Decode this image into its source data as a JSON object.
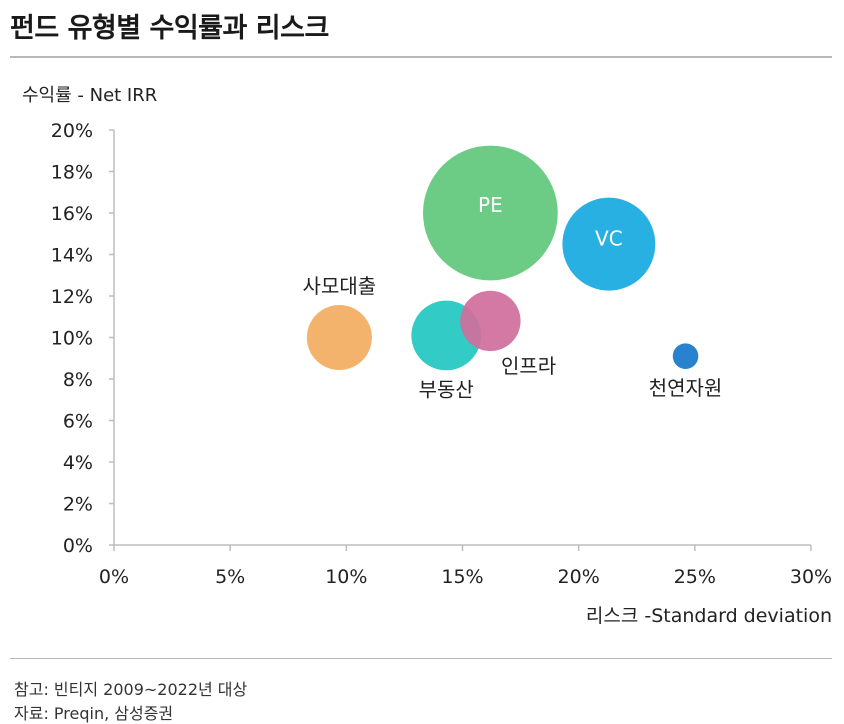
{
  "title": "펀드 유형별 수익률과 리스크",
  "notes": {
    "note1": "참고: 빈티지 2009~2022년 대상",
    "note2": "자료: Preqin, 삼성증권"
  },
  "chart_data": {
    "type": "scatter",
    "xlabel": "리스크 -Standard deviation",
    "ylabel": "수익률 - Net IRR",
    "xlim": [
      0,
      30
    ],
    "ylim": [
      0,
      20
    ],
    "xticks": [
      "0%",
      "5%",
      "10%",
      "15%",
      "20%",
      "25%",
      "30%"
    ],
    "yticks": [
      "0%",
      "2%",
      "4%",
      "6%",
      "8%",
      "10%",
      "12%",
      "14%",
      "16%",
      "18%",
      "20%"
    ],
    "grid": false,
    "points": [
      {
        "name": "사모대출",
        "x": 9.7,
        "y": 10.0,
        "size": 1.4,
        "color": "#f3ac5f",
        "label_pos": "above"
      },
      {
        "name": "부동산",
        "x": 14.3,
        "y": 10.1,
        "size": 1.5,
        "color": "#22c7c0",
        "label_pos": "below"
      },
      {
        "name": "인프라",
        "x": 16.2,
        "y": 10.8,
        "size": 1.3,
        "color": "#d06e9c",
        "label_pos": "below-right"
      },
      {
        "name": "PE",
        "x": 16.2,
        "y": 16.0,
        "size": 2.9,
        "color": "#5fc77b",
        "label_pos": "inside"
      },
      {
        "name": "VC",
        "x": 21.3,
        "y": 14.5,
        "size": 2.0,
        "color": "#17a9df",
        "label_pos": "inside"
      },
      {
        "name": "천연자원",
        "x": 24.6,
        "y": 9.1,
        "size": 0.55,
        "color": "#1677c9",
        "label_pos": "below"
      }
    ]
  }
}
